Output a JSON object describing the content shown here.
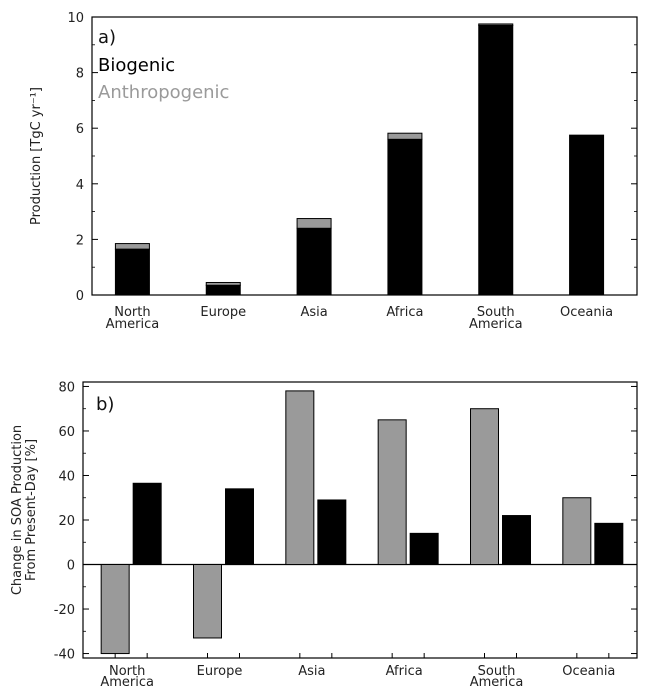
{
  "chart_data": [
    {
      "type": "bar",
      "stacked": true,
      "panel_label": "a)",
      "ylabel": "Production [TgC yr⁻¹]",
      "ylim": [
        0,
        10
      ],
      "yticks": [
        0,
        2,
        4,
        6,
        8,
        10
      ],
      "categories": [
        [
          "North",
          "America"
        ],
        [
          "Europe"
        ],
        [
          "Asia"
        ],
        [
          "Africa"
        ],
        [
          "South",
          "America"
        ],
        [
          "Oceania"
        ]
      ],
      "series": [
        {
          "name": "Biogenic",
          "color": "#000000",
          "values": [
            1.65,
            0.35,
            2.4,
            5.6,
            9.7,
            5.75
          ]
        },
        {
          "name": "Anthropogenic",
          "color": "#9a9a9a",
          "values": [
            0.2,
            0.1,
            0.35,
            0.22,
            0.05,
            0.0
          ]
        }
      ],
      "legend": "top-left"
    },
    {
      "type": "bar",
      "stacked": false,
      "panel_label": "b)",
      "ylabel_lines": [
        "Change in SOA Production",
        "From Present-Day [%]"
      ],
      "ylim": [
        -42,
        82
      ],
      "yticks": [
        -40,
        -20,
        0,
        20,
        40,
        60,
        80
      ],
      "categories": [
        [
          "North",
          "America"
        ],
        [
          "Europe"
        ],
        [
          "Asia"
        ],
        [
          "Africa"
        ],
        [
          "South",
          "America"
        ],
        [
          "Oceania"
        ]
      ],
      "series": [
        {
          "name": "Anthropogenic",
          "color": "#9a9a9a",
          "values": [
            -40,
            -33,
            78,
            65,
            70,
            30
          ]
        },
        {
          "name": "Biogenic",
          "color": "#000000",
          "values": [
            36.5,
            34,
            29,
            14,
            22,
            18.5
          ]
        }
      ]
    }
  ]
}
